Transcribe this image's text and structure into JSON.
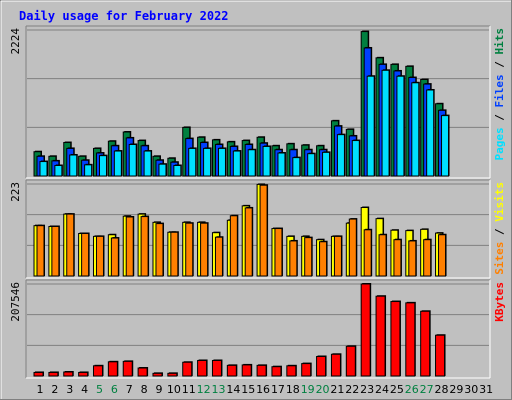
{
  "chart_data": {
    "type": "bar",
    "title": "Daily usage for February 2022",
    "categories": [
      "1",
      "2",
      "3",
      "4",
      "5",
      "6",
      "7",
      "8",
      "9",
      "10",
      "11",
      "12",
      "13",
      "14",
      "15",
      "16",
      "17",
      "18",
      "19",
      "20",
      "21",
      "22",
      "23",
      "24",
      "25",
      "26",
      "27",
      "28",
      "29",
      "30",
      "31"
    ],
    "weekend_days": [
      5,
      6,
      12,
      13,
      19,
      20,
      26,
      27
    ],
    "colors": {
      "hits": "#008040",
      "files": "#0040ff",
      "pages": "#00e0ff",
      "visits": "#ffff00",
      "sites": "#ff8000",
      "kbytes": "#ff0000",
      "title": "#0000ff",
      "weekend": "#008040",
      "weekday": "#000000"
    },
    "panels": [
      {
        "id": "top",
        "max_label": "2224",
        "ymax": 2224,
        "legend": [
          {
            "text": "Pages",
            "color": "#00e0ff"
          },
          {
            "text": " / ",
            "color": "#000000"
          },
          {
            "text": "Files",
            "color": "#0040ff"
          },
          {
            "text": " / ",
            "color": "#000000"
          },
          {
            "text": "Hits",
            "color": "#008040"
          }
        ],
        "series": [
          {
            "key": "hits",
            "values": [
              370,
              300,
              510,
              300,
              420,
              530,
              670,
              540,
              300,
              270,
              740,
              590,
              550,
              520,
              540,
              590,
              460,
              490,
              470,
              460,
              840,
              710,
              2200,
              1800,
              1700,
              1670,
              1470,
              1100,
              0,
              0,
              0
            ]
          },
          {
            "key": "files",
            "values": [
              300,
              230,
              420,
              240,
              350,
              460,
              580,
              460,
              240,
              210,
              570,
              510,
              480,
              450,
              480,
              500,
              400,
              400,
              400,
              400,
              760,
              610,
              1950,
              1700,
              1600,
              1500,
              1400,
              1000,
              0,
              0,
              0
            ]
          },
          {
            "key": "pages",
            "values": [
              220,
              160,
              320,
              170,
              310,
              380,
              480,
              380,
              180,
              160,
              420,
              420,
              420,
              380,
              400,
              450,
              350,
              280,
              340,
              360,
              630,
              540,
              1520,
              1610,
              1520,
              1420,
              1310,
              920,
              0,
              0,
              0
            ]
          }
        ]
      },
      {
        "id": "middle",
        "max_label": "223",
        "ymax": 223,
        "legend": [
          {
            "text": "Sites",
            "color": "#ff8000"
          },
          {
            "text": " / ",
            "color": "#000000"
          },
          {
            "text": "Visits",
            "color": "#ffff00"
          }
        ],
        "series": [
          {
            "key": "visits",
            "values": [
              122,
              120,
              150,
              103,
              96,
              100,
              145,
              150,
              130,
              106,
              130,
              130,
              105,
              135,
              170,
              222,
              115,
              96,
              96,
              88,
              96,
              128,
              166,
              139,
              111,
              110,
              113,
              104,
              0,
              0,
              0
            ]
          },
          {
            "key": "sites",
            "values": [
              122,
              120,
              150,
              103,
              96,
              92,
              143,
              144,
              127,
              106,
              128,
              128,
              94,
              146,
              165,
              220,
              115,
              85,
              93,
              83,
              96,
              138,
              112,
              100,
              88,
              85,
              88,
              100,
              0,
              0,
              0
            ]
          }
        ]
      },
      {
        "id": "bottom",
        "max_label": "207546",
        "ymax": 207546,
        "legend": [
          {
            "text": "KBytes",
            "color": "#ff0000"
          }
        ],
        "series": [
          {
            "key": "kbytes",
            "values": [
              8000,
              8000,
              9000,
              8000,
              23000,
              32000,
              33000,
              18000,
              6000,
              6000,
              31000,
              35000,
              35000,
              24000,
              25000,
              24000,
              21000,
              23000,
              28000,
              44000,
              49000,
              67000,
              207546,
              180000,
              168000,
              165000,
              146000,
              92000,
              0,
              0,
              0
            ]
          }
        ]
      }
    ]
  }
}
